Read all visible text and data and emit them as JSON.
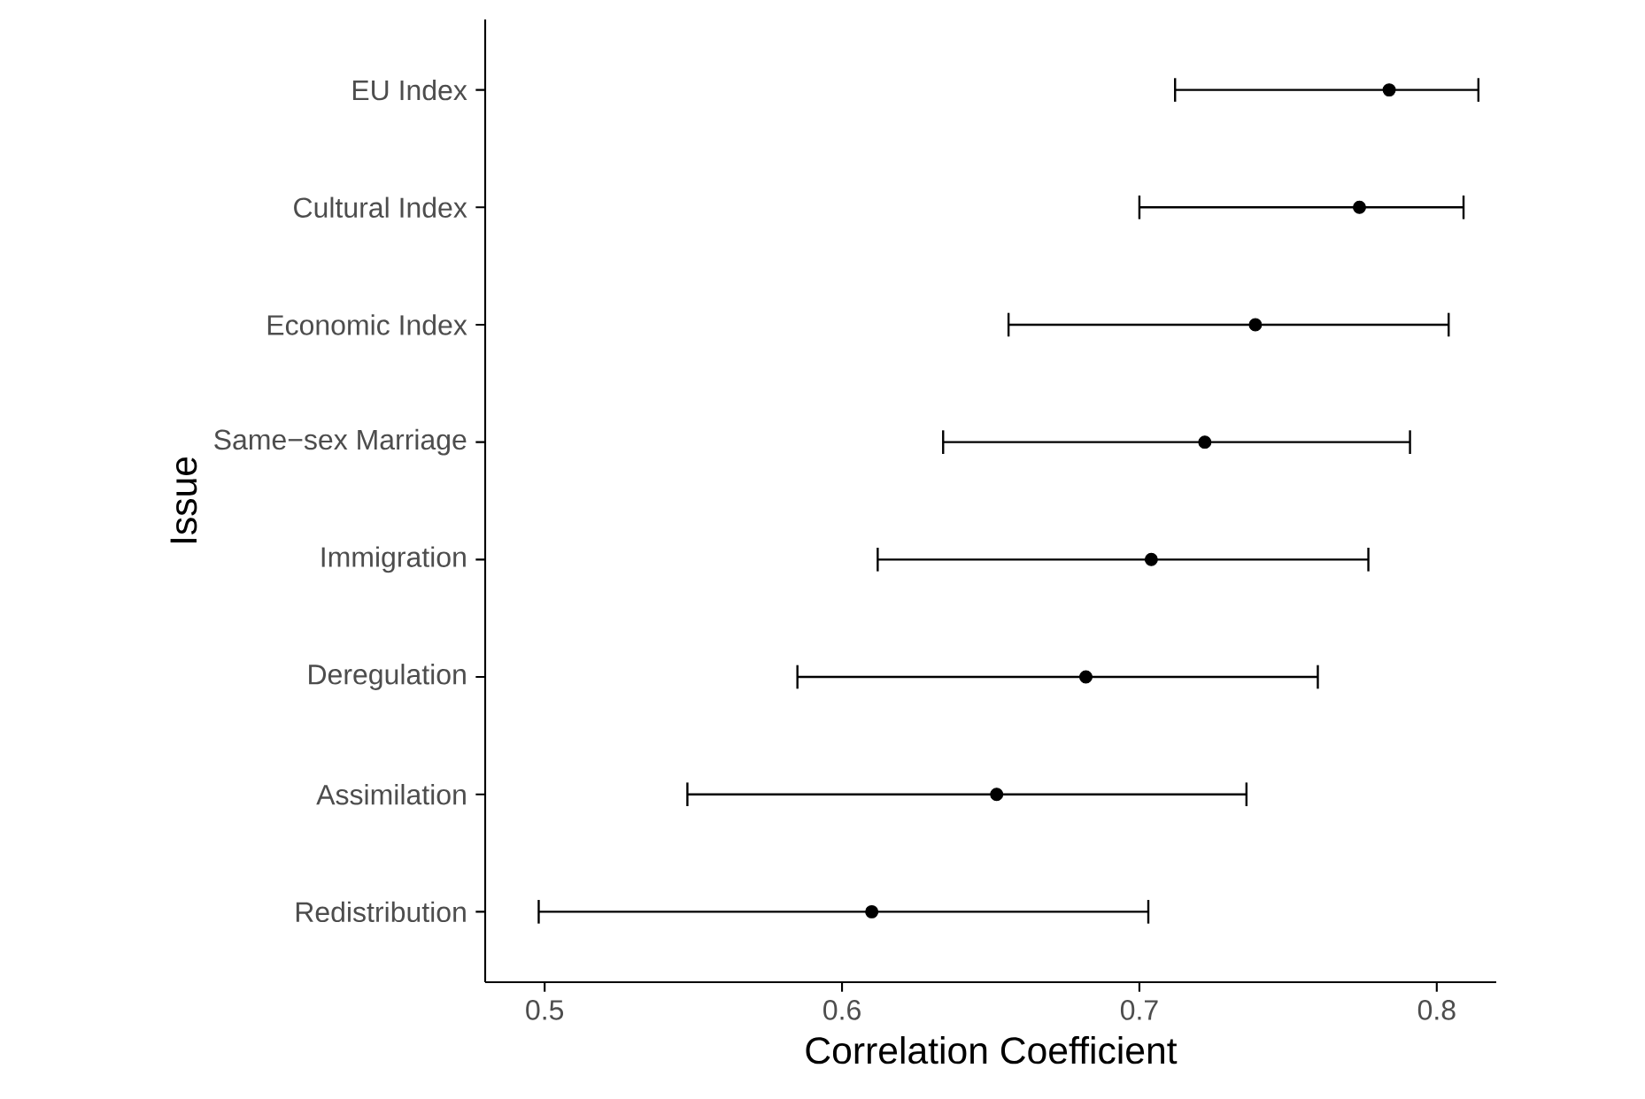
{
  "chart_data": {
    "type": "scatter",
    "orientation": "horizontal",
    "xlabel": "Correlation Coefficient",
    "ylabel": "Issue",
    "categories": [
      "EU Index",
      "Cultural Index",
      "Economic Index",
      "Same−sex Marriage",
      "Immigration",
      "Deregulation",
      "Assimilation",
      "Redistribution"
    ],
    "values": [
      0.784,
      0.774,
      0.739,
      0.722,
      0.704,
      0.682,
      0.652,
      0.61
    ],
    "errors": [
      [
        0.712,
        0.814
      ],
      [
        0.7,
        0.809
      ],
      [
        0.656,
        0.804
      ],
      [
        0.634,
        0.791
      ],
      [
        0.612,
        0.777
      ],
      [
        0.585,
        0.76
      ],
      [
        0.548,
        0.736
      ],
      [
        0.498,
        0.703
      ]
    ],
    "color": "#000000",
    "marker": "circle",
    "xlim": [
      0.48,
      0.82
    ],
    "xticks": [
      0.5,
      0.6,
      0.7,
      0.8
    ]
  }
}
